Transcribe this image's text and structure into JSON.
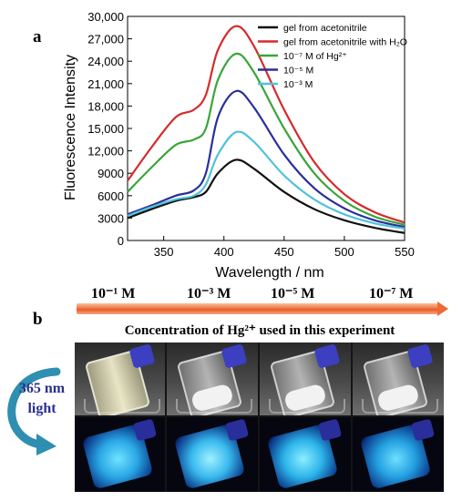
{
  "panel_a_label": "a",
  "panel_b_label": "b",
  "chart_data": {
    "type": "line",
    "xlabel": "Wavelength / nm",
    "ylabel": "Fluorescence Intensity",
    "xlim": [
      320,
      550
    ],
    "ylim": [
      0,
      30000
    ],
    "x_ticks": [
      "350",
      "400",
      "450",
      "500",
      "550"
    ],
    "y_ticks": [
      "0",
      "3000",
      "6000",
      "9000",
      "12,000",
      "15,000",
      "18,000",
      "21,000",
      "24,000",
      "27,000",
      "30,000"
    ],
    "legend_position": "top-right",
    "legend": [
      {
        "text": "gel from acetonitrile",
        "color": "#111111"
      },
      {
        "text": "gel from acetonitrile with H₂O",
        "color": "#d62a2a"
      },
      {
        "text": "10⁻⁷ M of Hg²⁺",
        "color": "#3aa53a"
      },
      {
        "text": "10⁻⁵ M",
        "color": "#2a2f9a"
      },
      {
        "text": "10⁻³ M",
        "color": "#4fc3dc"
      }
    ],
    "x": [
      320,
      340,
      360,
      375,
      385,
      395,
      410,
      425,
      450,
      475,
      500,
      525,
      550
    ],
    "series": [
      {
        "color": "#111111",
        "values": [
          3000,
          4200,
          5300,
          5800,
          6500,
          9000,
          10800,
          9600,
          6500,
          4200,
          2700,
          1700,
          1000
        ]
      },
      {
        "color": "#d62a2a",
        "values": [
          8000,
          12500,
          16500,
          17500,
          19500,
          25500,
          28700,
          26000,
          17500,
          10500,
          6200,
          3800,
          2400
        ]
      },
      {
        "color": "#3aa53a",
        "values": [
          6500,
          9800,
          12800,
          13500,
          15000,
          21500,
          25000,
          22500,
          15000,
          9000,
          5300,
          3200,
          2100
        ]
      },
      {
        "color": "#2a2f9a",
        "values": [
          3500,
          4700,
          6000,
          6700,
          9000,
          16500,
          20000,
          17800,
          11500,
          7000,
          4300,
          2700,
          1800
        ]
      },
      {
        "color": "#4fc3dc",
        "values": [
          3300,
          4500,
          5500,
          6000,
          7500,
          11500,
          14500,
          13200,
          8700,
          5500,
          3500,
          2300,
          1600
        ]
      }
    ]
  },
  "concentrations": [
    "10⁻¹ M",
    "10⁻³ M",
    "10⁻⁵ M",
    "10⁻⁷ M"
  ],
  "concentration_caption": "Concentration of Hg²⁺ used in this experiment",
  "uv_label": {
    "line1": "365 nm",
    "line2": "light"
  }
}
